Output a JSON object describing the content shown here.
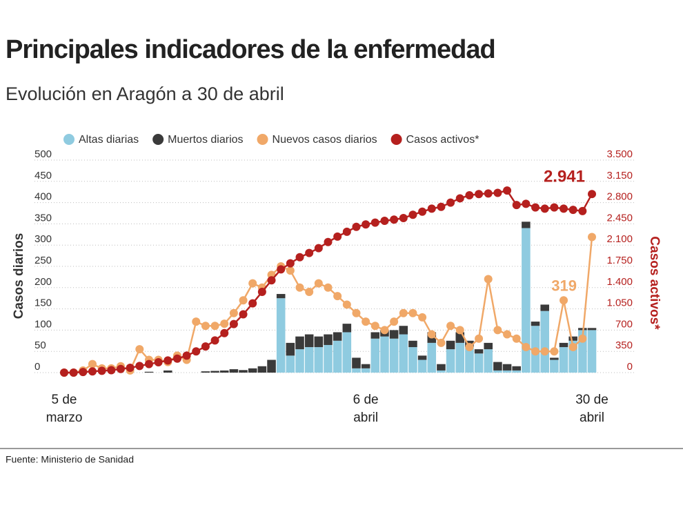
{
  "chart_data": {
    "type": "bar-line",
    "title": "Principales indicadores de la enfermedad",
    "subtitle": "Evolución en Aragón a 30 de abril",
    "source": "Fuente: Ministerio de Sanidad",
    "ylabel": "Casos diarios",
    "y2label": "Casos activos*",
    "categories": [
      "5 de marzo",
      null,
      null,
      null,
      null,
      null,
      null,
      null,
      null,
      null,
      null,
      null,
      null,
      null,
      null,
      null,
      null,
      null,
      null,
      null,
      null,
      null,
      null,
      null,
      null,
      null,
      null,
      null,
      null,
      null,
      null,
      null,
      "6 de abril",
      null,
      null,
      null,
      null,
      null,
      null,
      null,
      null,
      null,
      null,
      null,
      null,
      null,
      null,
      null,
      null,
      null,
      null,
      null,
      null,
      null,
      null,
      null,
      "30 de abril"
    ],
    "ylim": [
      0,
      500
    ],
    "yticks": [
      0,
      50,
      100,
      150,
      200,
      250,
      300,
      350,
      400,
      450,
      500
    ],
    "y2lim": [
      0,
      3500
    ],
    "y2ticks": [
      0,
      350,
      700,
      {
        "value": 1050,
        "label": "1.050"
      },
      {
        "value": 1400,
        "label": "1.400"
      },
      {
        "value": 1750,
        "label": "1.750"
      },
      {
        "value": 2100,
        "label": "2.100"
      },
      {
        "value": 2450,
        "label": "2.450"
      },
      {
        "value": 2800,
        "label": "2.800"
      },
      {
        "value": 3150,
        "label": "3.150"
      },
      {
        "value": 3500,
        "label": "3.500"
      }
    ],
    "grid": true,
    "series": [
      {
        "name": "Altas diarias",
        "color": "#8fcbe0",
        "kind": "bar",
        "values": [
          0,
          0,
          0,
          0,
          0,
          0,
          0,
          0,
          0,
          0,
          0,
          0,
          0,
          0,
          0,
          0,
          0,
          0,
          0,
          0,
          0,
          0,
          0,
          175,
          40,
          55,
          60,
          60,
          65,
          75,
          95,
          10,
          10,
          80,
          85,
          80,
          90,
          60,
          30,
          70,
          5,
          55,
          70,
          60,
          45,
          55,
          5,
          5,
          5,
          340,
          110,
          145,
          30,
          60,
          75,
          100,
          100
        ]
      },
      {
        "name": "Muertos diarios",
        "color": "#3a3a3a",
        "kind": "bar",
        "values": [
          0,
          0,
          0,
          0,
          0,
          0,
          0,
          0,
          0,
          2,
          0,
          5,
          0,
          0,
          0,
          3,
          4,
          5,
          8,
          6,
          10,
          15,
          30,
          10,
          30,
          30,
          30,
          25,
          25,
          20,
          20,
          25,
          10,
          15,
          15,
          20,
          20,
          15,
          10,
          25,
          15,
          20,
          25,
          15,
          10,
          15,
          20,
          15,
          10,
          15,
          10,
          15,
          5,
          10,
          10,
          5,
          5
        ]
      },
      {
        "name": "Nuevos casos diarios",
        "color": "#f0a868",
        "kind": "line",
        "values": [
          0,
          0,
          5,
          20,
          10,
          10,
          15,
          5,
          55,
          30,
          30,
          25,
          40,
          30,
          120,
          110,
          110,
          115,
          140,
          170,
          210,
          200,
          230,
          250,
          240,
          200,
          190,
          210,
          200,
          180,
          160,
          140,
          120,
          110,
          100,
          120,
          140,
          140,
          130,
          90,
          70,
          110,
          100,
          60,
          80,
          220,
          100,
          90,
          80,
          60,
          50,
          50,
          50,
          170,
          60,
          80,
          319
        ]
      },
      {
        "name": "Casos activos*",
        "color": "#b5201e",
        "kind": "line",
        "axis": "y2",
        "values": [
          0,
          0,
          10,
          20,
          30,
          40,
          60,
          80,
          110,
          140,
          170,
          200,
          230,
          280,
          350,
          430,
          530,
          650,
          800,
          960,
          1140,
          1330,
          1520,
          1700,
          1800,
          1900,
          1970,
          2050,
          2150,
          2240,
          2320,
          2400,
          2440,
          2470,
          2500,
          2520,
          2545,
          2600,
          2650,
          2700,
          2730,
          2800,
          2870,
          2920,
          2940,
          2950,
          2960,
          2998,
          2760,
          2780,
          2720,
          2700,
          2720,
          2700,
          2680,
          2660,
          2941
        ],
        "value_labels": [
          null,
          null,
          null,
          null,
          null,
          null,
          null,
          null,
          null,
          null,
          null,
          null,
          null,
          null,
          null,
          null,
          null,
          null,
          null,
          null,
          null,
          null,
          null,
          null,
          null,
          null,
          null,
          null,
          null,
          null,
          null,
          null,
          null,
          null,
          null,
          null,
          null,
          null,
          null,
          null,
          null,
          null,
          null,
          null,
          null,
          null,
          null,
          null,
          null,
          null,
          null,
          null,
          null,
          null,
          null,
          null,
          "2.941"
        ]
      }
    ]
  }
}
